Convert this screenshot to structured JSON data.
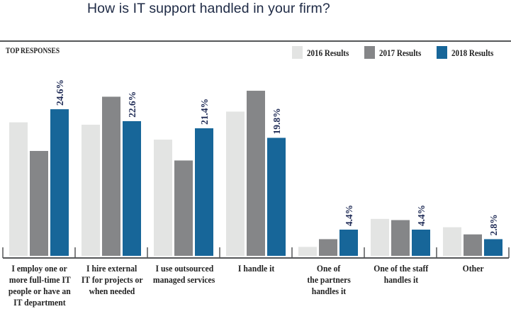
{
  "title": "How is IT support handled in your firm?",
  "section_label": "TOP RESPONSES",
  "colors": {
    "2016": "#e3e4e3",
    "2017": "#858688",
    "2018": "#176699",
    "axis": "#555759",
    "value_label": "#1e2a55"
  },
  "legend": [
    {
      "label": "2016 Results",
      "key": "2016"
    },
    {
      "label": "2017 Results",
      "key": "2017"
    },
    {
      "label": "2018 Results",
      "key": "2018"
    }
  ],
  "chart_data": {
    "type": "bar",
    "title": "How is IT support handled in your firm?",
    "subtitle": "TOP RESPONSES",
    "xlabel": "",
    "ylabel": "",
    "ylim": [
      0,
      28
    ],
    "grid": false,
    "legend_position": "top-right",
    "categories": [
      [
        "I employ one or",
        "more full-time IT",
        "people or have an",
        "IT department"
      ],
      [
        "I hire external",
        "IT for projects or",
        "when needed"
      ],
      [
        "I use outsourced",
        "managed services"
      ],
      [
        "I handle it"
      ],
      [
        "One of",
        "the partners",
        "handles it"
      ],
      [
        "One of the staff",
        "handles it"
      ],
      [
        "Other"
      ]
    ],
    "series": [
      {
        "name": "2016 Results",
        "key": "2016",
        "values": [
          22.4,
          22.0,
          19.5,
          24.2,
          1.5,
          6.2,
          4.8
        ]
      },
      {
        "name": "2017 Results",
        "key": "2017",
        "values": [
          17.6,
          26.7,
          16.0,
          27.7,
          2.8,
          6.0,
          3.6
        ]
      },
      {
        "name": "2018 Results",
        "key": "2018",
        "values": [
          24.6,
          22.6,
          21.4,
          19.8,
          4.4,
          4.4,
          2.8
        ]
      }
    ],
    "data_labels": {
      "series": "2018 Results",
      "values": [
        "24.6%",
        "22.6%",
        "21.4%",
        "19.8%",
        "4.4%",
        "4.4%",
        "2.8%"
      ]
    }
  }
}
